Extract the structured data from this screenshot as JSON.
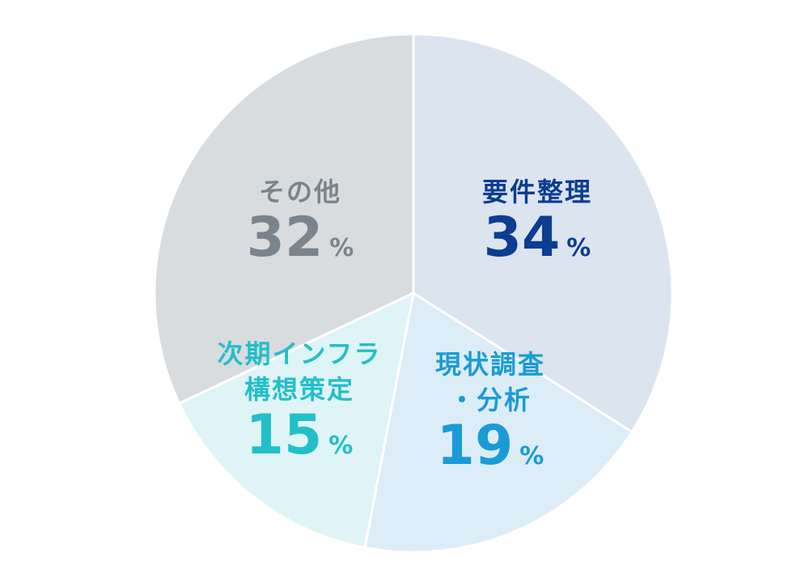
{
  "chart_data": {
    "type": "pie",
    "start_angle_deg": 0,
    "direction": "clockwise",
    "slices": [
      {
        "label_lines": [
          "要件整理"
        ],
        "value": 34,
        "unit": "%",
        "fill": "#dce4f0",
        "text_color": "#0b3d91"
      },
      {
        "label_lines": [
          "現状調査",
          "・分析"
        ],
        "value": 19,
        "unit": "%",
        "fill": "#dcedf7",
        "text_color": "#1a9ad6"
      },
      {
        "label_lines": [
          "次期インフラ",
          "構想策定"
        ],
        "value": 15,
        "unit": "%",
        "fill": "#dff4f6",
        "text_color": "#22bfc9"
      },
      {
        "label_lines": [
          "その他"
        ],
        "value": 32,
        "unit": "%",
        "fill": "#d9dcdf",
        "text_color": "#7b848d"
      }
    ]
  }
}
